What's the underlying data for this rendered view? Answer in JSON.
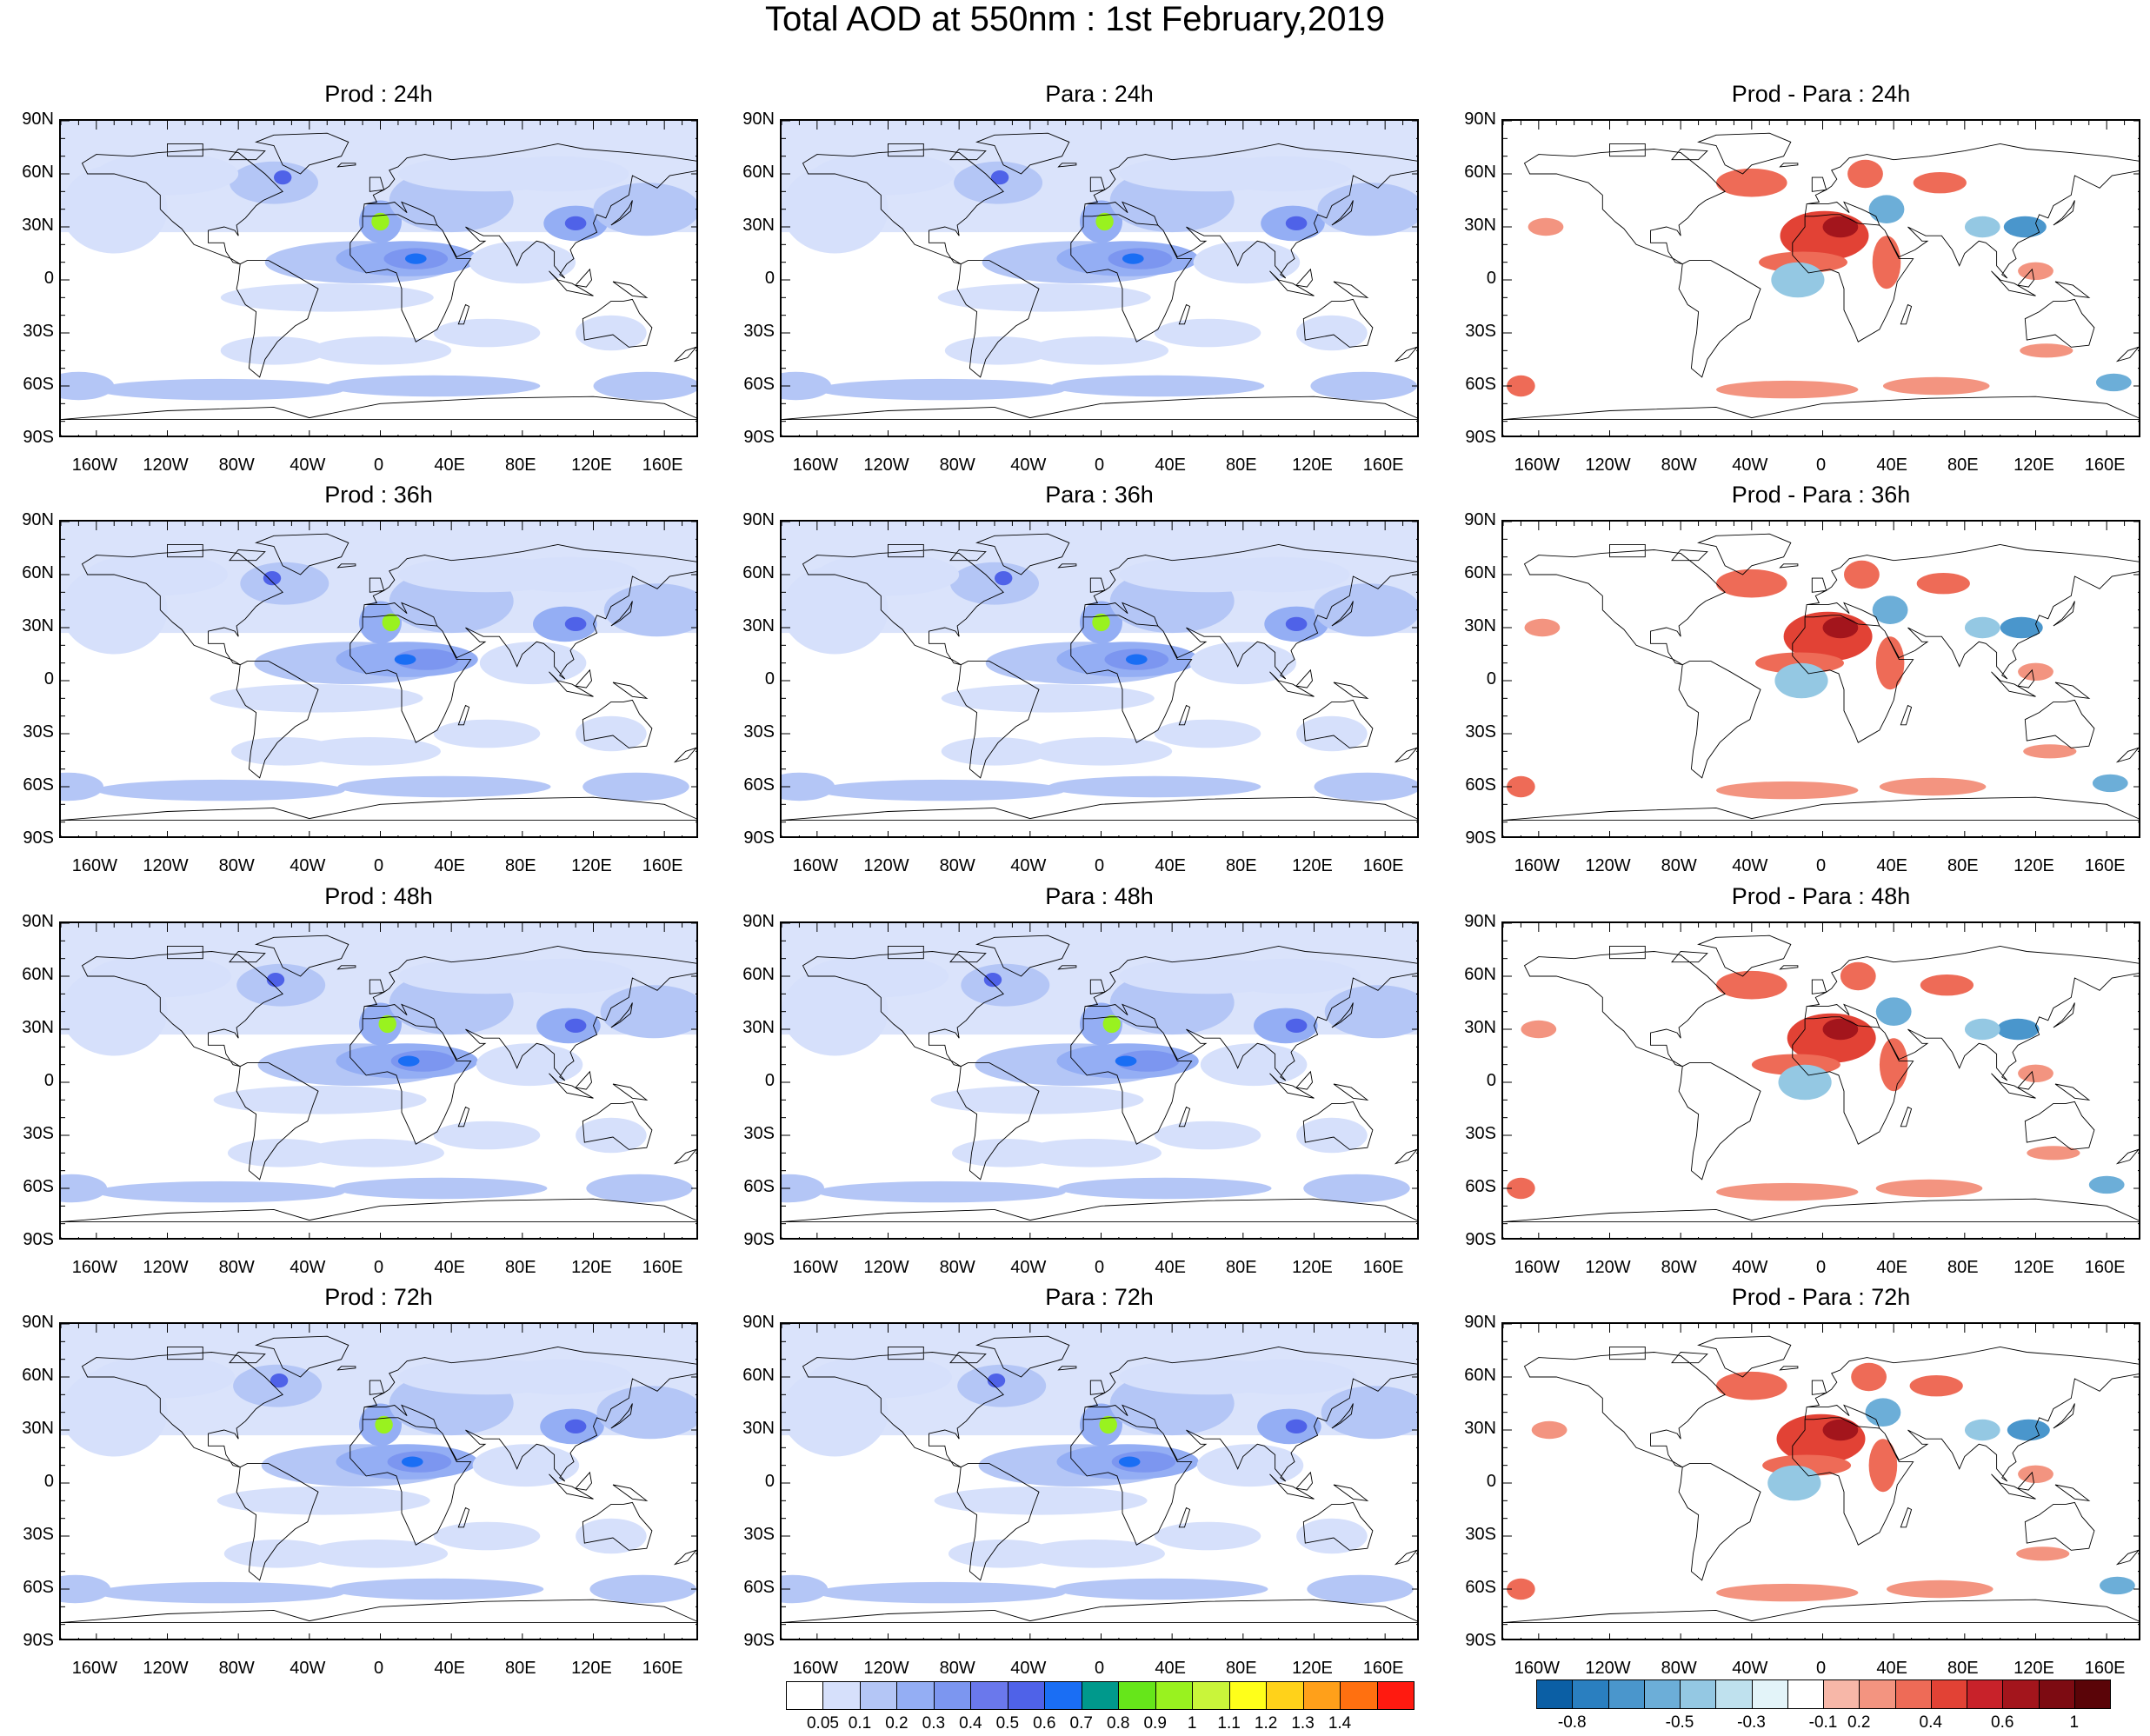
{
  "title": "Total AOD at 550nm : 1st February,2019",
  "latitude_labels": [
    "90N",
    "60N",
    "30N",
    "0",
    "30S",
    "60S",
    "90S"
  ],
  "longitude_labels": [
    "160W",
    "120W",
    "80W",
    "40W",
    "0",
    "40E",
    "80E",
    "120E",
    "160E"
  ],
  "panels": [
    {
      "title": "Prod : 24h",
      "kind": "aod"
    },
    {
      "title": "Para : 24h",
      "kind": "aod"
    },
    {
      "title": "Prod - Para : 24h",
      "kind": "diff"
    },
    {
      "title": "Prod : 36h",
      "kind": "aod"
    },
    {
      "title": "Para : 36h",
      "kind": "aod"
    },
    {
      "title": "Prod - Para : 36h",
      "kind": "diff"
    },
    {
      "title": "Prod : 48h",
      "kind": "aod"
    },
    {
      "title": "Para : 48h",
      "kind": "aod"
    },
    {
      "title": "Prod - Para : 48h",
      "kind": "diff"
    },
    {
      "title": "Prod : 72h",
      "kind": "aod"
    },
    {
      "title": "Para : 72h",
      "kind": "aod"
    },
    {
      "title": "Prod - Para : 72h",
      "kind": "diff"
    }
  ],
  "aod_colorbar": {
    "labels": [
      "0.05",
      "0.1",
      "0.2",
      "0.3",
      "0.4",
      "0.5",
      "0.6",
      "0.7",
      "0.8",
      "0.9",
      "1",
      "1.1",
      "1.2",
      "1.3",
      "1.4"
    ],
    "colors": [
      "#ffffff",
      "#d6e0fb",
      "#b4c6f6",
      "#94aef4",
      "#7c96f0",
      "#6a78ec",
      "#4f62e8",
      "#1a6ef4",
      "#00998c",
      "#66e61a",
      "#99f21f",
      "#c9f53a",
      "#ffff1a",
      "#ffd21a",
      "#ffa01a",
      "#ff7010",
      "#ff1a10"
    ]
  },
  "diff_colorbar": {
    "labels": [
      "-0.8",
      "-0.5",
      "-0.3",
      "-0.1",
      "0.2",
      "0.4",
      "0.6",
      "1"
    ],
    "colors": [
      "#0b5fa5",
      "#2a7fc0",
      "#4a96cc",
      "#6caed8",
      "#94c8e3",
      "#bfe1ee",
      "#e3f4f9",
      "#ffffff",
      "#f7b7a8",
      "#f39480",
      "#ee6b57",
      "#e24235",
      "#c8222a",
      "#a3151c",
      "#7d0b12",
      "#5a0408"
    ]
  }
}
